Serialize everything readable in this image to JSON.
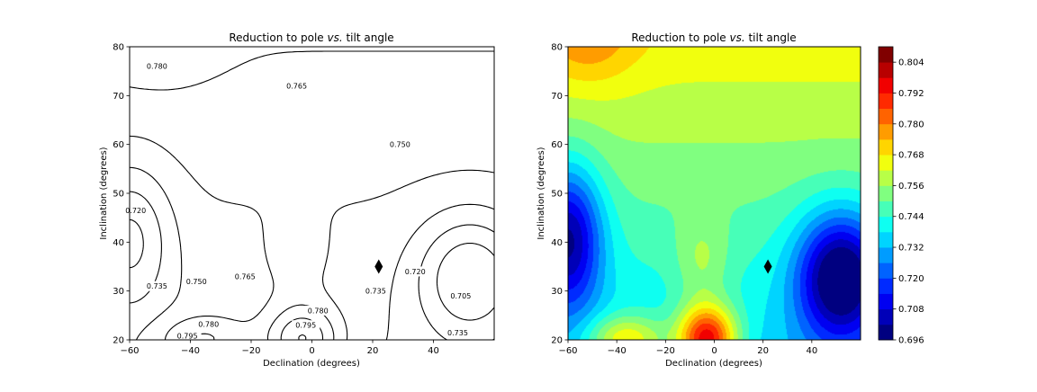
{
  "chart_data": [
    {
      "type": "contour",
      "title_main": "Reduction to pole ",
      "title_italic": "vs.",
      "title_end": " tilt angle",
      "xlabel": "Declination (degrees)",
      "ylabel": "Inclination (degrees)",
      "xlim": [
        -60,
        60
      ],
      "ylim": [
        20,
        80
      ],
      "xticks": [
        -60,
        -40,
        -20,
        0,
        20,
        40
      ],
      "yticks": [
        20,
        30,
        40,
        50,
        60,
        70,
        80
      ],
      "marker": {
        "shape": "diamond",
        "x": 22,
        "y": 35
      },
      "contour_labels": [
        {
          "text": "0.780",
          "x": -51,
          "y": 76
        },
        {
          "text": "0.765",
          "x": -5,
          "y": 72
        },
        {
          "text": "0.750",
          "x": 29,
          "y": 60
        },
        {
          "text": "0.720",
          "x": -58,
          "y": 46.5
        },
        {
          "text": "0.735",
          "x": -51,
          "y": 31
        },
        {
          "text": "0.750",
          "x": -38,
          "y": 32
        },
        {
          "text": "0.765",
          "x": -22,
          "y": 33
        },
        {
          "text": "0.780",
          "x": 2,
          "y": 26
        },
        {
          "text": "0.795",
          "x": -2,
          "y": 23
        },
        {
          "text": "0.780",
          "x": -34,
          "y": 23.2
        },
        {
          "text": "0.795",
          "x": -41,
          "y": 20.8
        },
        {
          "text": "0.735",
          "x": 21,
          "y": 30
        },
        {
          "text": "0.720",
          "x": 34,
          "y": 34
        },
        {
          "text": "0.705",
          "x": 49,
          "y": 29
        },
        {
          "text": "0.735",
          "x": 48,
          "y": 21.5
        }
      ]
    },
    {
      "type": "filled_contour",
      "title_main": "Reduction to pole ",
      "title_italic": "vs.",
      "title_end": " tilt angle",
      "xlabel": "Declination (degrees)",
      "ylabel": "Inclination (degrees)",
      "xlim": [
        -60,
        60
      ],
      "ylim": [
        20,
        80
      ],
      "xticks": [
        -60,
        -40,
        -20,
        0,
        20,
        40
      ],
      "yticks": [
        20,
        30,
        40,
        50,
        60,
        70,
        80
      ],
      "marker": {
        "shape": "diamond",
        "x": 22,
        "y": 35
      },
      "colorbar": {
        "colormap": "jet",
        "vmin": 0.696,
        "vmax": 0.81,
        "levels": [
          0.696,
          0.702,
          0.708,
          0.714,
          0.72,
          0.726,
          0.732,
          0.738,
          0.744,
          0.75,
          0.756,
          0.762,
          0.768,
          0.774,
          0.78,
          0.786,
          0.792,
          0.798,
          0.804,
          0.81
        ],
        "ticks": [
          "0.696",
          "0.708",
          "0.720",
          "0.732",
          "0.744",
          "0.756",
          "0.768",
          "0.780",
          "0.792",
          "0.804"
        ]
      }
    }
  ]
}
